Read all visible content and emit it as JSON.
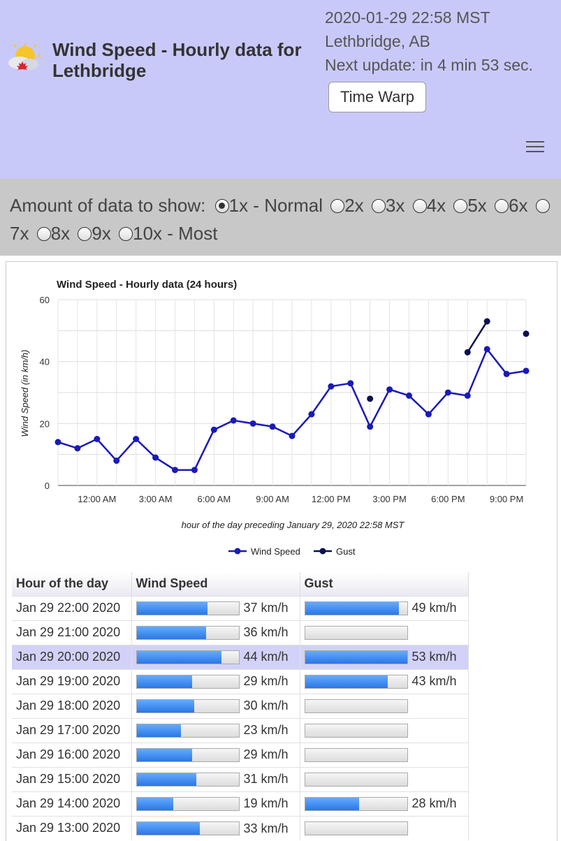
{
  "header": {
    "title": "Wind Speed - Hourly data for Lethbridge",
    "datetime": "2020-01-29 22:58 MST",
    "location": "Lethbridge, AB",
    "next_update": "Next update: in 4 min 53 sec.",
    "time_warp_label": "Time Warp"
  },
  "options": {
    "label": "Amount of data to show:",
    "choices": [
      "1x - Normal",
      "2x",
      "3x",
      "4x",
      "5x",
      "6x",
      "7x",
      "8x",
      "9x",
      "10x - Most"
    ],
    "selected": "1x - Normal"
  },
  "chart_data": {
    "type": "line",
    "title": "Wind Speed - Hourly data (24 hours)",
    "xlabel": "hour of the day preceding January 29, 2020 22:58 MST",
    "ylabel": "Wind Speed (in km/h)",
    "ylim": [
      0,
      60
    ],
    "yticks": [
      0,
      20,
      40,
      60
    ],
    "x": [
      "22:00",
      "23:00",
      "00:00",
      "01:00",
      "02:00",
      "03:00",
      "04:00",
      "05:00",
      "06:00",
      "07:00",
      "08:00",
      "09:00",
      "10:00",
      "11:00",
      "12:00",
      "13:00",
      "14:00",
      "15:00",
      "16:00",
      "17:00",
      "18:00",
      "19:00",
      "20:00",
      "21:00",
      "22:00"
    ],
    "xtick_labels": [
      "12:00 AM",
      "3:00 AM",
      "6:00 AM",
      "9:00 AM",
      "12:00 PM",
      "3:00 PM",
      "6:00 PM",
      "9:00 PM"
    ],
    "grid": true,
    "legend": "bottom",
    "series": [
      {
        "name": "Wind Speed",
        "color": "#1a1ab8",
        "values": [
          14,
          12,
          15,
          8,
          15,
          9,
          5,
          5,
          18,
          21,
          20,
          19,
          16,
          23,
          32,
          33,
          19,
          31,
          29,
          23,
          30,
          29,
          44,
          36,
          37
        ]
      },
      {
        "name": "Gust",
        "color": "#0a1050",
        "values": [
          null,
          null,
          null,
          null,
          null,
          null,
          null,
          null,
          null,
          null,
          null,
          null,
          null,
          null,
          null,
          null,
          28,
          null,
          null,
          null,
          null,
          43,
          53,
          null,
          49
        ]
      }
    ]
  },
  "table": {
    "headers": [
      "Hour of the day",
      "Wind Speed",
      "Gust"
    ],
    "max": 53,
    "rows": [
      {
        "hour": "Jan 29 22:00 2020",
        "wind": 37,
        "wind_label": "37 km/h",
        "gust": 49,
        "gust_label": "49 km/h"
      },
      {
        "hour": "Jan 29 21:00 2020",
        "wind": 36,
        "wind_label": "36 km/h",
        "gust": 0,
        "gust_label": ""
      },
      {
        "hour": "Jan 29 20:00 2020",
        "wind": 44,
        "wind_label": "44 km/h",
        "gust": 53,
        "gust_label": "53 km/h"
      },
      {
        "hour": "Jan 29 19:00 2020",
        "wind": 29,
        "wind_label": "29 km/h",
        "gust": 43,
        "gust_label": "43 km/h"
      },
      {
        "hour": "Jan 29 18:00 2020",
        "wind": 30,
        "wind_label": "30 km/h",
        "gust": 0,
        "gust_label": ""
      },
      {
        "hour": "Jan 29 17:00 2020",
        "wind": 23,
        "wind_label": "23 km/h",
        "gust": 0,
        "gust_label": ""
      },
      {
        "hour": "Jan 29 16:00 2020",
        "wind": 29,
        "wind_label": "29 km/h",
        "gust": 0,
        "gust_label": ""
      },
      {
        "hour": "Jan 29 15:00 2020",
        "wind": 31,
        "wind_label": "31 km/h",
        "gust": 0,
        "gust_label": ""
      },
      {
        "hour": "Jan 29 14:00 2020",
        "wind": 19,
        "wind_label": "19 km/h",
        "gust": 28,
        "gust_label": "28 km/h"
      },
      {
        "hour": "Jan 29 13:00 2020",
        "wind": 33,
        "wind_label": "33 km/h",
        "gust": 0,
        "gust_label": ""
      }
    ]
  }
}
